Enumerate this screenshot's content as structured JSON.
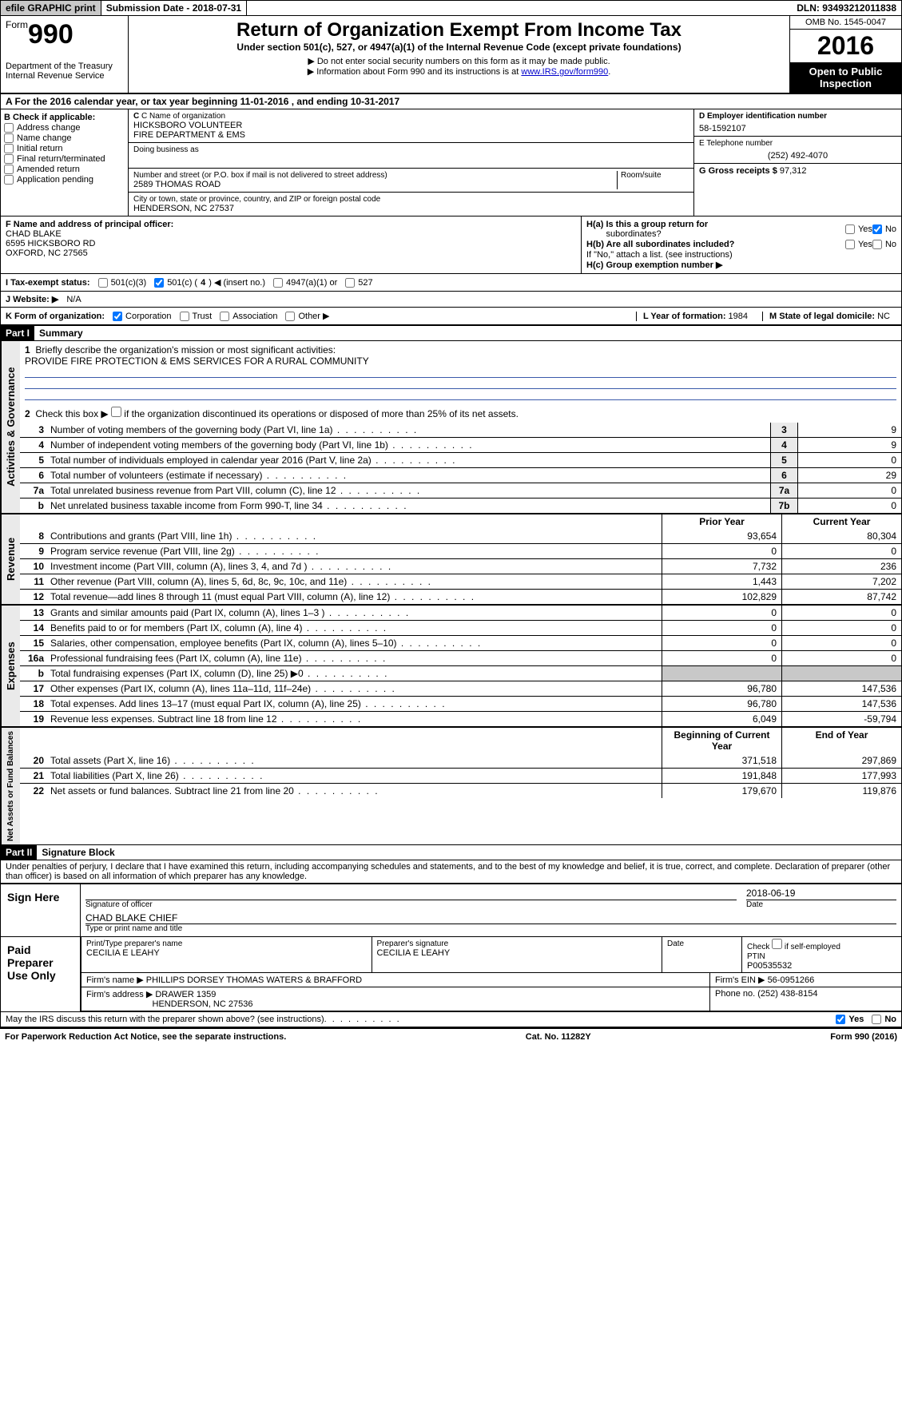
{
  "topbar": {
    "efile": "efile GRAPHIC print",
    "submission_label": "Submission Date - ",
    "submission_date": "2018-07-31",
    "dln_label": "DLN: ",
    "dln": "93493212011838"
  },
  "header": {
    "form_prefix": "Form",
    "form_no": "990",
    "dept1": "Department of the Treasury",
    "dept2": "Internal Revenue Service",
    "title": "Return of Organization Exempt From Income Tax",
    "subtitle": "Under section 501(c), 527, or 4947(a)(1) of the Internal Revenue Code (except private foundations)",
    "note1": "▶ Do not enter social security numbers on this form as it may be made public.",
    "note2_pre": "▶ Information about Form 990 and its instructions is at ",
    "note2_link": "www.IRS.gov/form990",
    "omb": "OMB No. 1545-0047",
    "year": "2016",
    "open1": "Open to Public",
    "open2": "Inspection"
  },
  "sectionA": {
    "text_pre": "A  For the 2016 calendar year, or tax year beginning ",
    "begin": "11-01-2016",
    "mid": "   , and ending ",
    "end": "10-31-2017"
  },
  "colB": {
    "header": "B Check if applicable:",
    "items": [
      "Address change",
      "Name change",
      "Initial return",
      "Final return/terminated",
      "Amended return",
      "Application pending"
    ]
  },
  "colC": {
    "name_label": "C Name of organization",
    "name1": "HICKSBORO VOLUNTEER",
    "name2": "FIRE DEPARTMENT & EMS",
    "dba_label": "Doing business as",
    "street_label": "Number and street (or P.O. box if mail is not delivered to street address)",
    "room_label": "Room/suite",
    "street": "2589 THOMAS ROAD",
    "city_label": "City or town, state or province, country, and ZIP or foreign postal code",
    "city": "HENDERSON, NC  27537"
  },
  "colD": {
    "ein_label": "D Employer identification number",
    "ein": "58-1592107",
    "phone_label": "E Telephone number",
    "phone": "(252) 492-4070",
    "gross_label": "G Gross receipts $ ",
    "gross": "97,312"
  },
  "rowF": {
    "label": "F  Name and address of principal officer:",
    "line1": "CHAD BLAKE",
    "line2": "6595 HICKSBORO RD",
    "line3": "OXFORD, NC  27565"
  },
  "rowH": {
    "ha": "H(a)  Is this a group return for",
    "ha2": "subordinates?",
    "hb": "H(b)  Are all subordinates included?",
    "hb_note": "If \"No,\" attach a list. (see instructions)",
    "hc": "H(c)  Group exemption number ▶",
    "yes": "Yes",
    "no": "No"
  },
  "rowI": {
    "label": "I  Tax-exempt status:",
    "opt1": "501(c)(3)",
    "opt2_pre": "501(c) ( ",
    "opt2_num": "4",
    "opt2_post": " ) ◀ (insert no.)",
    "opt3": "4947(a)(1) or",
    "opt4": "527"
  },
  "rowJ": {
    "label": "J  Website: ▶",
    "value": "N/A"
  },
  "rowK": {
    "label": "K Form of organization:",
    "opts": [
      "Corporation",
      "Trust",
      "Association",
      "Other ▶"
    ],
    "year_label": "L Year of formation: ",
    "year": "1984",
    "state_label": "M State of legal domicile: ",
    "state": "NC"
  },
  "part1": {
    "hdr": "Part I",
    "title": "Summary",
    "side1": "Activities & Governance",
    "side2": "Revenue",
    "side3": "Expenses",
    "side4": "Net Assets or Fund Balances",
    "l1": "Briefly describe the organization's mission or most significant activities:",
    "mission": "PROVIDE FIRE PROTECTION & EMS SERVICES FOR A RURAL COMMUNITY",
    "l2": "Check this box ▶        if the organization discontinued its operations or disposed of more than 25% of its net assets.",
    "lines_gov": [
      {
        "n": "3",
        "t": "Number of voting members of the governing body (Part VI, line 1a)",
        "b": "3",
        "v": "9"
      },
      {
        "n": "4",
        "t": "Number of independent voting members of the governing body (Part VI, line 1b)",
        "b": "4",
        "v": "9"
      },
      {
        "n": "5",
        "t": "Total number of individuals employed in calendar year 2016 (Part V, line 2a)",
        "b": "5",
        "v": "0"
      },
      {
        "n": "6",
        "t": "Total number of volunteers (estimate if necessary)",
        "b": "6",
        "v": "29"
      },
      {
        "n": "7a",
        "t": "Total unrelated business revenue from Part VIII, column (C), line 12",
        "b": "7a",
        "v": "0"
      },
      {
        "n": "b",
        "t": "Net unrelated business taxable income from Form 990-T, line 34",
        "b": "7b",
        "v": "0"
      }
    ],
    "col_prior": "Prior Year",
    "col_current": "Current Year",
    "rev": [
      {
        "n": "8",
        "t": "Contributions and grants (Part VIII, line 1h)",
        "p": "93,654",
        "c": "80,304"
      },
      {
        "n": "9",
        "t": "Program service revenue (Part VIII, line 2g)",
        "p": "0",
        "c": "0"
      },
      {
        "n": "10",
        "t": "Investment income (Part VIII, column (A), lines 3, 4, and 7d )",
        "p": "7,732",
        "c": "236"
      },
      {
        "n": "11",
        "t": "Other revenue (Part VIII, column (A), lines 5, 6d, 8c, 9c, 10c, and 11e)",
        "p": "1,443",
        "c": "7,202"
      },
      {
        "n": "12",
        "t": "Total revenue—add lines 8 through 11 (must equal Part VIII, column (A), line 12)",
        "p": "102,829",
        "c": "87,742"
      }
    ],
    "exp": [
      {
        "n": "13",
        "t": "Grants and similar amounts paid (Part IX, column (A), lines 1–3 )",
        "p": "0",
        "c": "0"
      },
      {
        "n": "14",
        "t": "Benefits paid to or for members (Part IX, column (A), line 4)",
        "p": "0",
        "c": "0"
      },
      {
        "n": "15",
        "t": "Salaries, other compensation, employee benefits (Part IX, column (A), lines 5–10)",
        "p": "0",
        "c": "0"
      },
      {
        "n": "16a",
        "t": "Professional fundraising fees (Part IX, column (A), line 11e)",
        "p": "0",
        "c": "0"
      },
      {
        "n": "b",
        "t": "Total fundraising expenses (Part IX, column (D), line 25) ▶0",
        "p": "",
        "c": "",
        "shade": true
      },
      {
        "n": "17",
        "t": "Other expenses (Part IX, column (A), lines 11a–11d, 11f–24e)",
        "p": "96,780",
        "c": "147,536"
      },
      {
        "n": "18",
        "t": "Total expenses. Add lines 13–17 (must equal Part IX, column (A), line 25)",
        "p": "96,780",
        "c": "147,536"
      },
      {
        "n": "19",
        "t": "Revenue less expenses. Subtract line 18 from line 12",
        "p": "6,049",
        "c": "-59,794"
      }
    ],
    "col_begin": "Beginning of Current Year",
    "col_end": "End of Year",
    "net": [
      {
        "n": "20",
        "t": "Total assets (Part X, line 16)",
        "p": "371,518",
        "c": "297,869"
      },
      {
        "n": "21",
        "t": "Total liabilities (Part X, line 26)",
        "p": "191,848",
        "c": "177,993"
      },
      {
        "n": "22",
        "t": "Net assets or fund balances. Subtract line 21 from line 20",
        "p": "179,670",
        "c": "119,876"
      }
    ]
  },
  "part2": {
    "hdr": "Part II",
    "title": "Signature Block",
    "perjury": "Under penalties of perjury, I declare that I have examined this return, including accompanying schedules and statements, and to the best of my knowledge and belief, it is true, correct, and complete. Declaration of preparer (other than officer) is based on all information of which preparer has any knowledge.",
    "sign_here": "Sign Here",
    "sig_officer": "Signature of officer",
    "date_label": "Date",
    "sig_date": "2018-06-19",
    "name_title": "CHAD BLAKE CHIEF",
    "type_name": "Type or print name and title",
    "paid": "Paid Preparer Use Only",
    "prep_name_label": "Print/Type preparer's name",
    "prep_name": "CECILIA E LEAHY",
    "prep_sig_label": "Preparer's signature",
    "prep_sig": "CECILIA E LEAHY",
    "check_self": "Check         if self-employed",
    "ptin_label": "PTIN",
    "ptin": "P00535532",
    "firm_name_label": "Firm's name      ▶",
    "firm_name": "PHILLIPS DORSEY THOMAS WATERS & BRAFFORD",
    "firm_ein_label": "Firm's EIN ▶",
    "firm_ein": "56-0951266",
    "firm_addr_label": "Firm's address ▶",
    "firm_addr1": "DRAWER 1359",
    "firm_addr2": "HENDERSON, NC  27536",
    "firm_phone_label": "Phone no. ",
    "firm_phone": "(252) 438-8154",
    "discuss": "May the IRS discuss this return with the preparer shown above? (see instructions)"
  },
  "footer": {
    "paperwork": "For Paperwork Reduction Act Notice, see the separate instructions.",
    "cat": "Cat. No. 11282Y",
    "form": "Form 990 (2016)"
  }
}
